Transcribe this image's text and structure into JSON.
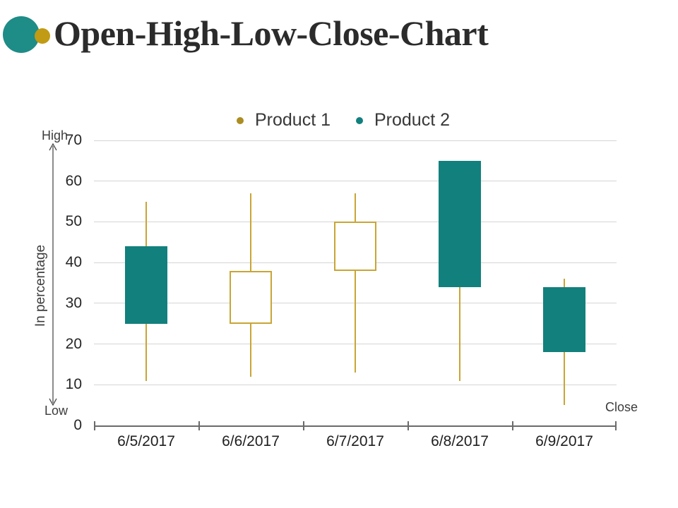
{
  "title": "Open-High-Low-Close-Chart",
  "decor": {
    "teal_circle_color": "#1e8c87",
    "gold_circle_color": "#c19b13"
  },
  "legend": {
    "items": [
      {
        "label": "Product 1",
        "color": "#ab8d22",
        "marker": "circle-bullet"
      },
      {
        "label": "Product 2",
        "color": "#12807d",
        "marker": "circle-bullet"
      }
    ]
  },
  "axis_annotations": {
    "high": "High",
    "low": "Low",
    "close": "Close"
  },
  "chart_data": {
    "type": "candlestick-ohlc",
    "title": "Open-High-Low-Close-Chart",
    "xlabel": "",
    "ylabel": "In percentage",
    "categories": [
      "6/5/2017",
      "6/6/2017",
      "6/7/2017",
      "6/8/2017",
      "6/9/2017"
    ],
    "series": [
      {
        "date": "6/5/2017",
        "open": 44,
        "high": 55,
        "low": 11,
        "close": 25,
        "direction": "down"
      },
      {
        "date": "6/6/2017",
        "open": 25,
        "high": 57,
        "low": 12,
        "close": 38,
        "direction": "up"
      },
      {
        "date": "6/7/2017",
        "open": 38,
        "high": 57,
        "low": 13,
        "close": 50,
        "direction": "up"
      },
      {
        "date": "6/8/2017",
        "open": 65,
        "high": 65,
        "low": 11,
        "close": 34,
        "direction": "down"
      },
      {
        "date": "6/9/2017",
        "open": 34,
        "high": 36,
        "low": 5,
        "close": 18,
        "direction": "down"
      }
    ],
    "ylim": [
      0,
      70
    ],
    "yticks": [
      0,
      10,
      20,
      30,
      40,
      50,
      60,
      70
    ],
    "grid": true,
    "legend_position": "top-center",
    "colors": {
      "down_fill": "#12807d",
      "up_fill": "#ffffff",
      "up_border": "#c9a535",
      "wick": "#c9a535",
      "gridline": "#d5d5d5",
      "axis_line": "#6b6b6b"
    }
  }
}
